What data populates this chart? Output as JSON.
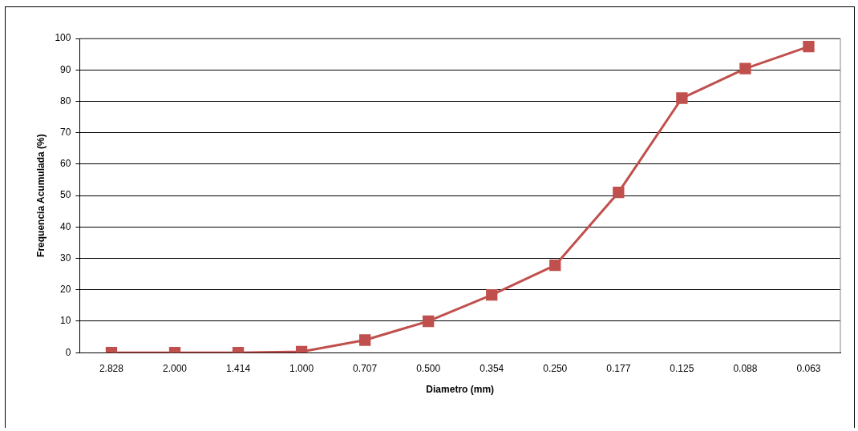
{
  "chart_data": {
    "type": "line",
    "xlabel": "Diametro (mm)",
    "ylabel": "Frequencia Acumulada (%)",
    "categories": [
      "2.828",
      "2.000",
      "1.414",
      "1.000",
      "0.707",
      "0.500",
      "0.354",
      "0.250",
      "0.177",
      "0.125",
      "0.088",
      "0.063"
    ],
    "series": [
      {
        "color": "#c0504d",
        "values": [
          0,
          0,
          0,
          0.3,
          4,
          10,
          18.4,
          27.8,
          51,
          81,
          90.4,
          97.4
        ]
      }
    ],
    "ylim": [
      0,
      100
    ],
    "yticks": [
      0,
      10,
      20,
      30,
      40,
      50,
      60,
      70,
      80,
      90,
      100
    ],
    "grid": "y",
    "legend": false,
    "marker": "square"
  }
}
